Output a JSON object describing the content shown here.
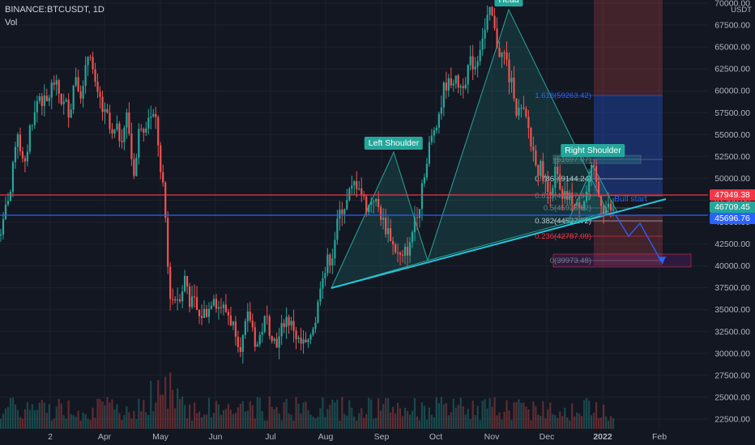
{
  "symbol": {
    "title": "BINANCE:BTCUSDT, 1D",
    "volume_label": "Vol"
  },
  "currency": "USDT",
  "price_axis": {
    "ticks": [
      "70000.00",
      "67500.00",
      "65000.00",
      "62500.00",
      "60000.00",
      "57500.00",
      "55000.00",
      "52500.00",
      "50000.00",
      "47500.00",
      "45000.00",
      "42500.00",
      "40000.00",
      "37500.00",
      "35000.00",
      "32500.00",
      "30000.00",
      "27500.00",
      "25000.00",
      "22500.00"
    ],
    "min": 22000,
    "max": 70500
  },
  "time_axis": {
    "ticks": [
      "2",
      "Apr",
      "May",
      "Jun",
      "Jul",
      "Aug",
      "Sep",
      "Oct",
      "Nov",
      "Dec",
      "2022",
      "Feb"
    ]
  },
  "price_tags": [
    {
      "value": "47949.38",
      "color": "#f23645"
    },
    {
      "value": "46709.45",
      "color": "#26a69a"
    },
    {
      "value": "45696.76",
      "color": "#2962ff"
    }
  ],
  "annotations": {
    "left_shoulder": "Left Shoulder",
    "head": "Head",
    "right_shoulder": "Right Shoulder",
    "bull_start": "Bull start"
  },
  "fib_levels": [
    {
      "label": "1.618(59263.42)",
      "color": "#2962ff"
    },
    {
      "label": "(51697.07)",
      "color": "#787b86"
    },
    {
      "label": "0.786(49144.24)",
      "color": "#d1d4dc"
    },
    {
      "label": "0.618(47247.97)",
      "color": "#787b86"
    },
    {
      "label": "0.5(45928.52)",
      "color": "#787b86"
    },
    {
      "label": "0.382(44527.72)",
      "color": "#d1d4dc"
    },
    {
      "label": "0.236(42787.09)",
      "color": "#f23645"
    },
    {
      "label": "0(39973.48)",
      "color": "#787b86"
    }
  ],
  "chart_data": {
    "type": "candlestick",
    "series": [
      {
        "name": "BTCUSDT",
        "close": [
          44500,
          48500,
          55500,
          51000,
          57000,
          59500,
          58500,
          61000,
          59000,
          58000,
          62000,
          60000,
          64800,
          59000,
          57000,
          54500,
          55000,
          57000,
          51000,
          56500,
          57500,
          56500,
          48500,
          37000,
          36500,
          38500,
          35500,
          34000,
          35000,
          37000,
          35500,
          34500,
          33000,
          31500,
          34000,
          31000,
          33500,
          32500,
          31500,
          34000,
          33000,
          31000,
          30500,
          34000,
          39500,
          41000,
          44500,
          47000,
          48500,
          49500,
          47000,
          48000,
          46000,
          44000,
          42000,
          40500,
          42000,
          46500,
          51000,
          54500,
          57500,
          61000,
          61500,
          60500,
          62500,
          63000,
          66500,
          68500,
          65500,
          64000,
          60500,
          57500,
          56500,
          53000,
          51000,
          48500,
          50500,
          47000,
          47500,
          46500,
          47800,
          50500,
          48000,
          46700,
          46000
        ]
      }
    ],
    "ylim": [
      22000,
      70500
    ],
    "horizontal_levels": [
      47949.38,
      45696.76
    ]
  }
}
